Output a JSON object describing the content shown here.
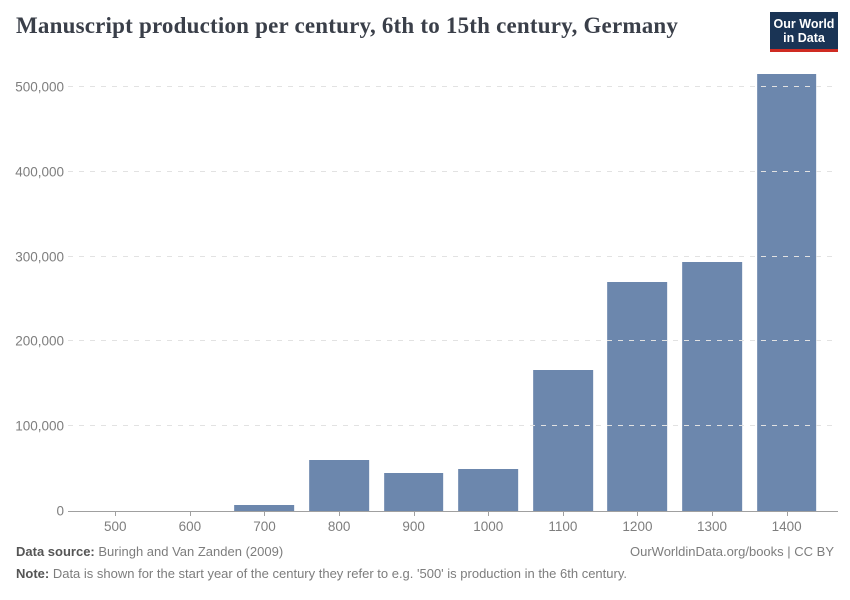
{
  "header": {
    "title": "Manuscript production per century, 6th to 15th century, Germany",
    "logo": {
      "line1": "Our World",
      "line2": "in Data"
    }
  },
  "chart_data": {
    "type": "bar",
    "title": "Manuscript production per century, 6th to 15th century, Germany",
    "categories": [
      "500",
      "600",
      "700",
      "800",
      "900",
      "1000",
      "1100",
      "1200",
      "1300",
      "1400"
    ],
    "values": [
      0,
      0,
      7500,
      60000,
      45000,
      49000,
      166000,
      270000,
      294000,
      515000
    ],
    "xlabel": "",
    "ylabel": "",
    "ylim": [
      0,
      532000
    ],
    "yticks": [
      0,
      100000,
      200000,
      300000,
      400000,
      500000
    ],
    "ytick_labels": [
      "0",
      "100,000",
      "200,000",
      "300,000",
      "400,000",
      "500,000"
    ],
    "grid": "horizontal-dashed",
    "legend": "none",
    "bar_color": "#6c87ad"
  },
  "footer": {
    "data_source_label": "Data source:",
    "data_source_text": " Buringh and Van Zanden (2009)",
    "credit": "OurWorldinData.org/books | CC BY",
    "note_label": "Note:",
    "note_text": " Data is shown for the start year of the century they refer to e.g. '500' is production in the 6th century."
  },
  "colors": {
    "title": "#3a3f49",
    "bar": "#6c87ad",
    "grid": "#e2e2e2",
    "axis": "#a0a0a0",
    "tick_label": "#7e7e7e",
    "footer_text": "#7d7d7d",
    "footer_bold": "#555555",
    "logo_bg": "#1a3455",
    "logo_stripe": "#cf2b22",
    "logo_text": "#ffffff"
  }
}
